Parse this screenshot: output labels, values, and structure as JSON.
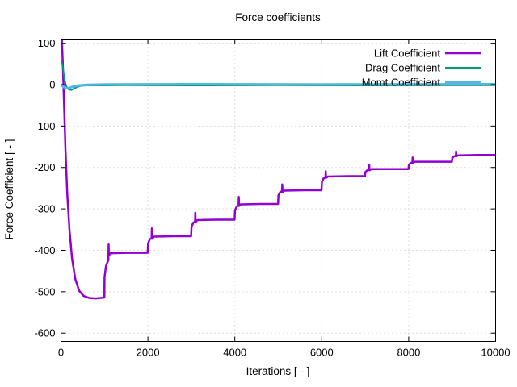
{
  "window": {
    "background": "#ffffff",
    "border_color": "#000000",
    "grid_color": "#bdbdbd",
    "text_color": "#000000"
  },
  "chart_data": {
    "type": "line",
    "title": "Force coefficients",
    "xlabel": "Iterations [ - ]",
    "ylabel": "Force Coefficient [ - ]",
    "xlim": [
      0,
      10000
    ],
    "ylim": [
      -620,
      110
    ],
    "x_ticks": [
      0,
      2000,
      4000,
      6000,
      8000,
      10000
    ],
    "y_ticks": [
      100,
      0,
      -100,
      -200,
      -300,
      -400,
      -500,
      -600
    ],
    "grid": "dotted",
    "legend_position": "top-right-inside",
    "series": [
      {
        "name": "Lift Coefficient",
        "color": "#9400d3",
        "width": 2.5,
        "points": [
          [
            20,
            108
          ],
          [
            40,
            55
          ],
          [
            70,
            -45
          ],
          [
            105,
            -160
          ],
          [
            145,
            -265
          ],
          [
            195,
            -350
          ],
          [
            255,
            -420
          ],
          [
            330,
            -470
          ],
          [
            420,
            -498
          ],
          [
            520,
            -510
          ],
          [
            650,
            -515
          ],
          [
            800,
            -516
          ],
          [
            900,
            -515
          ],
          [
            998,
            -514
          ],
          [
            1002,
            -465
          ],
          [
            1035,
            -438
          ],
          [
            1075,
            -427
          ],
          [
            1090,
            -425
          ],
          [
            1096,
            -386
          ],
          [
            1103,
            -412
          ],
          [
            1140,
            -407
          ],
          [
            1500,
            -406
          ],
          [
            1995,
            -406
          ],
          [
            2003,
            -384
          ],
          [
            2045,
            -373
          ],
          [
            2085,
            -371
          ],
          [
            2091,
            -347
          ],
          [
            2099,
            -372
          ],
          [
            2140,
            -367
          ],
          [
            2600,
            -366
          ],
          [
            2995,
            -366
          ],
          [
            3003,
            -343
          ],
          [
            3045,
            -333
          ],
          [
            3085,
            -331
          ],
          [
            3091,
            -309
          ],
          [
            3099,
            -332
          ],
          [
            3140,
            -327
          ],
          [
            3600,
            -326
          ],
          [
            3995,
            -326
          ],
          [
            4003,
            -304
          ],
          [
            4045,
            -294
          ],
          [
            4085,
            -292
          ],
          [
            4091,
            -271
          ],
          [
            4099,
            -293
          ],
          [
            4140,
            -289
          ],
          [
            4600,
            -288
          ],
          [
            4995,
            -288
          ],
          [
            5003,
            -267
          ],
          [
            5045,
            -259
          ],
          [
            5085,
            -258
          ],
          [
            5091,
            -241
          ],
          [
            5099,
            -259
          ],
          [
            5140,
            -256
          ],
          [
            5600,
            -255
          ],
          [
            5995,
            -255
          ],
          [
            6003,
            -235
          ],
          [
            6045,
            -226
          ],
          [
            6085,
            -224
          ],
          [
            6091,
            -209
          ],
          [
            6099,
            -225
          ],
          [
            6140,
            -222
          ],
          [
            6600,
            -221
          ],
          [
            6995,
            -221
          ],
          [
            7003,
            -211
          ],
          [
            7045,
            -207
          ],
          [
            7085,
            -206
          ],
          [
            7091,
            -193
          ],
          [
            7099,
            -207
          ],
          [
            7140,
            -204
          ],
          [
            7600,
            -204
          ],
          [
            7995,
            -204
          ],
          [
            8003,
            -194
          ],
          [
            8045,
            -189
          ],
          [
            8085,
            -188
          ],
          [
            8091,
            -176
          ],
          [
            8099,
            -189
          ],
          [
            8140,
            -186
          ],
          [
            8600,
            -186
          ],
          [
            8995,
            -186
          ],
          [
            9003,
            -177
          ],
          [
            9045,
            -173
          ],
          [
            9085,
            -172
          ],
          [
            9091,
            -161
          ],
          [
            9099,
            -173
          ],
          [
            9140,
            -171
          ],
          [
            9600,
            -170
          ],
          [
            10000,
            -170
          ]
        ]
      },
      {
        "name": "Drag Coefficient",
        "color": "#009e73",
        "width": 2,
        "points": [
          [
            12,
            57
          ],
          [
            28,
            50
          ],
          [
            50,
            36
          ],
          [
            75,
            18
          ],
          [
            105,
            2
          ],
          [
            140,
            -8
          ],
          [
            185,
            -12
          ],
          [
            235,
            -13
          ],
          [
            295,
            -10
          ],
          [
            365,
            -6
          ],
          [
            455,
            -3
          ],
          [
            600,
            -2
          ],
          [
            900,
            -2
          ],
          [
            1500,
            -1.5
          ],
          [
            3000,
            -2
          ],
          [
            5000,
            -1.5
          ],
          [
            7000,
            -2
          ],
          [
            10000,
            -1.5
          ]
        ]
      },
      {
        "name": "Momt Coefficient",
        "color": "#56b4e9",
        "width": 3,
        "points": [
          [
            12,
            -2
          ],
          [
            50,
            -5
          ],
          [
            100,
            -8
          ],
          [
            160,
            -9
          ],
          [
            220,
            -7
          ],
          [
            300,
            -4
          ],
          [
            420,
            -2
          ],
          [
            600,
            -0.5
          ],
          [
            1000,
            0.5
          ],
          [
            3000,
            1
          ],
          [
            6000,
            0.5
          ],
          [
            10000,
            1
          ]
        ]
      }
    ]
  }
}
